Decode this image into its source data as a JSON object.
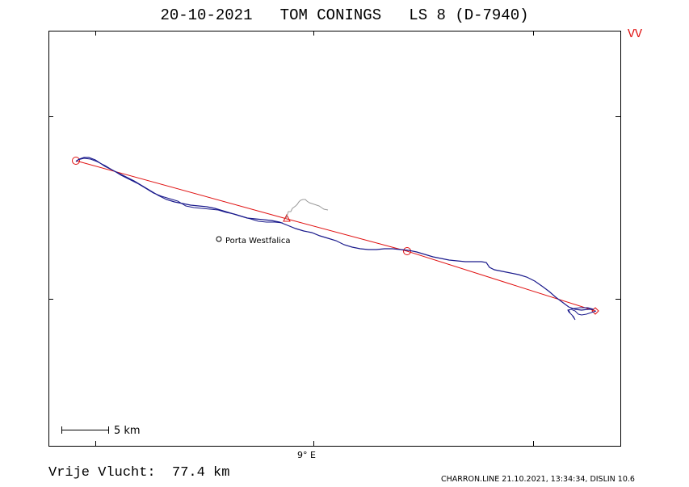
{
  "header": {
    "title": "20-10-2021   TOM CONINGS   LS 8 (D-7940)",
    "marker": "VV"
  },
  "map": {
    "scale_label": "5 km",
    "longitude_label": "9° E",
    "places": [
      {
        "name": "Porta Westfalica"
      }
    ],
    "colors": {
      "track": "#1a1a8c",
      "task": "#e01010",
      "grey_track": "#999999"
    }
  },
  "summary": {
    "label": "Vrije Vlucht:",
    "value": "77.4 km"
  },
  "footer": {
    "text": "CHARRON.LINE 21.10.2021, 13:34:34, DISLIN 10.6"
  }
}
